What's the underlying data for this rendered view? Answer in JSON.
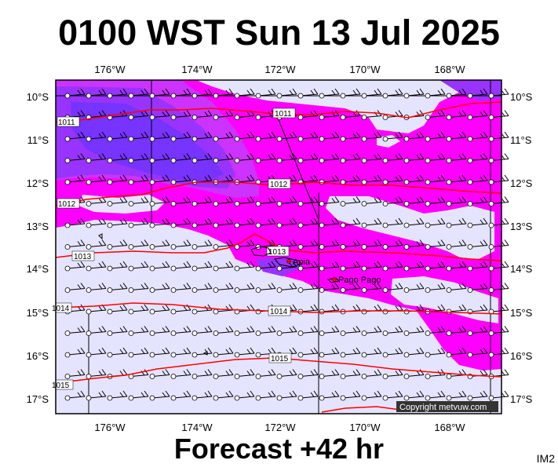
{
  "title": "0100 WST Sun 13 Jul 2025",
  "subtitle": "Forecast +42 hr",
  "product_code": "IM2",
  "copyright": "Copyright metvuw.com",
  "map": {
    "lon_labels": [
      "176°W",
      "174°W",
      "172°W",
      "170°W",
      "168°W"
    ],
    "lat_labels": [
      "10°S",
      "11°S",
      "12°S",
      "13°S",
      "14°S",
      "15°S",
      "16°S",
      "17°S"
    ],
    "isobars": [
      {
        "label": "1011"
      },
      {
        "label": "1011"
      },
      {
        "label": "1012"
      },
      {
        "label": "1012"
      },
      {
        "label": "1013"
      },
      {
        "label": "1013"
      },
      {
        "label": "1014"
      },
      {
        "label": "1014"
      },
      {
        "label": "1015"
      },
      {
        "label": "1015"
      }
    ],
    "places": [
      {
        "name": "Apia"
      },
      {
        "name": "Pago Pago"
      }
    ],
    "colors": {
      "background": "#e4e4ff",
      "rain_light": "#ff00ff",
      "rain_medium": "#cc33ff",
      "rain_heavy": "#9933ff",
      "rain_heaviest": "#7733ff",
      "isobar": "#ff0000",
      "coast": "#000000"
    }
  }
}
